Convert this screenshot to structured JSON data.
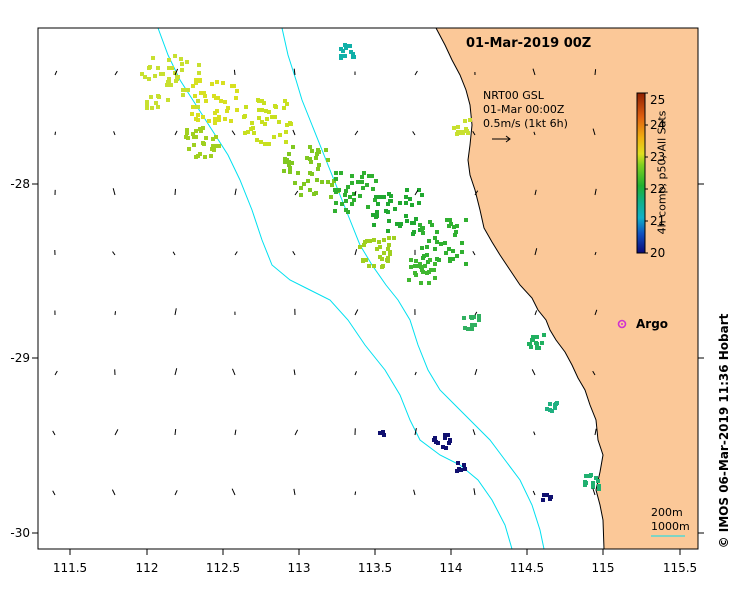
{
  "title": "01-Mar-2019 00Z",
  "info": {
    "line1": "NRT00 GSL",
    "line2": "01-Mar 00:00Z",
    "line3": "0.5m/s (1kt 6h)"
  },
  "argo_label": "Argo",
  "colorbar": {
    "title": "4h comp, p50, All Sats",
    "min": 20,
    "max": 25,
    "ticks": [
      "20",
      "21",
      "22",
      "23",
      "24",
      "25"
    ]
  },
  "depth_contours": {
    "label_200": "200m",
    "label_1000": "1000m",
    "color": "#00e0f0"
  },
  "credit": "© IMOS 06-Mar-2019 11:36 Hobart",
  "axes": {
    "x_ticks": [
      "111.5",
      "112",
      "112.5",
      "113",
      "113.5",
      "114",
      "114.5",
      "115",
      "115.5"
    ],
    "y_ticks": [
      "-28",
      "-29",
      "-30"
    ]
  },
  "colors": {
    "land": "#fbc898",
    "coast": "#000000",
    "argo": "#d030d0"
  }
}
